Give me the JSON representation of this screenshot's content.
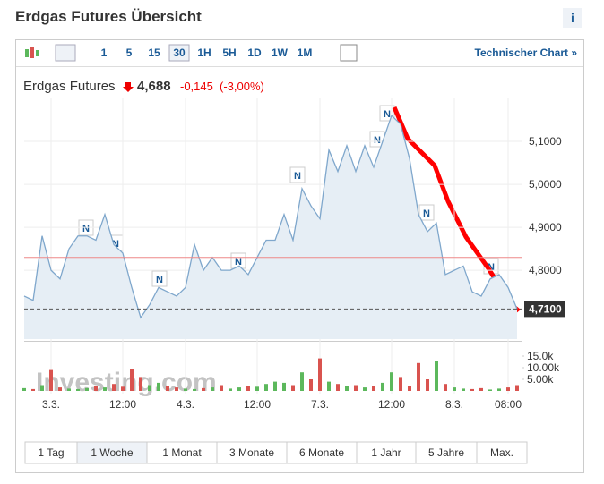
{
  "header": {
    "title": "Erdgas Futures Übersicht",
    "info": "i"
  },
  "toolbar": {
    "intervals": [
      "1",
      "5",
      "15",
      "30",
      "1H",
      "5H",
      "1D",
      "1W",
      "1M"
    ],
    "active": "30",
    "link": "Technischer Chart »"
  },
  "quote": {
    "name": "Erdgas Futures",
    "price": "4,688",
    "change": "-0,145",
    "change_pct": "(-3,00%)"
  },
  "news_label": "N",
  "watermark": "Investing.com",
  "range_buttons": [
    "1 Tag",
    "1 Woche",
    "1 Monat",
    "3 Monate",
    "6 Monate",
    "1 Jahr",
    "5 Jahre",
    "Max."
  ],
  "active_range": "1 Woche",
  "chart_data": [
    {
      "type": "line",
      "color": "#7fa7cc",
      "fill": "#e6eef5",
      "categories": [
        null,
        null,
        null,
        "3.3.",
        null,
        null,
        null,
        null,
        null,
        null,
        null,
        "12:00",
        null,
        null,
        null,
        null,
        null,
        null,
        "4.3.",
        null,
        null,
        null,
        null,
        null,
        null,
        null,
        "12:00",
        null,
        null,
        null,
        null,
        null,
        null,
        "7.3.",
        null,
        null,
        null,
        null,
        null,
        null,
        null,
        "12:00",
        null,
        null,
        null,
        null,
        null,
        null,
        "8.3.",
        null,
        null,
        null,
        null,
        null,
        "08:00",
        null
      ],
      "values": [
        4.74,
        4.73,
        4.88,
        4.8,
        4.78,
        4.85,
        4.88,
        4.88,
        4.87,
        4.93,
        4.86,
        4.84,
        4.76,
        4.69,
        4.72,
        4.76,
        4.75,
        4.74,
        4.76,
        4.86,
        4.8,
        4.83,
        4.8,
        4.8,
        4.81,
        4.79,
        4.83,
        4.87,
        4.87,
        4.93,
        4.87,
        4.99,
        4.95,
        4.92,
        5.08,
        5.03,
        5.09,
        5.03,
        5.09,
        5.04,
        5.1,
        5.16,
        5.14,
        5.06,
        4.93,
        4.89,
        4.91,
        4.79,
        4.8,
        4.81,
        4.75,
        4.74,
        4.78,
        4.79,
        4.76,
        4.71
      ],
      "ylim": [
        4.64,
        5.2
      ],
      "yticks": [
        {
          "value": 4.8,
          "label": "4,8000"
        },
        {
          "value": 4.9,
          "label": "4,9000"
        },
        {
          "value": 5.0,
          "label": "5,0000"
        },
        {
          "value": 5.1,
          "label": "5,1000"
        }
      ],
      "reference_line": {
        "value": 4.83,
        "color": "#e88"
      },
      "last_value": {
        "value": 4.71,
        "label": "4,7100"
      }
    },
    {
      "type": "bar",
      "up_color": "#5cb85c",
      "down_color": "#d9534f",
      "values": [
        1200,
        800,
        2500,
        9000,
        1500,
        1000,
        800,
        1200,
        2000,
        1500,
        3000,
        1800,
        9500,
        6000,
        2500,
        3500,
        2000,
        1500,
        1000,
        800,
        1200,
        1500,
        2500,
        1000,
        1500,
        2000,
        1800,
        3000,
        4000,
        3500,
        2500,
        8000,
        5000,
        14000,
        4000,
        3000,
        2000,
        2500,
        1500,
        2000,
        3500,
        8000,
        6000,
        2000,
        12000,
        5000,
        13000,
        3000,
        1500,
        1000,
        800,
        1200,
        600,
        1000,
        1500,
        2500
      ],
      "ylim": [
        0,
        20000
      ],
      "yticks": [
        {
          "value": 5000,
          "label": "5.00k"
        },
        {
          "value": 10000,
          "label": "10.00k"
        },
        {
          "value": 15000,
          "label": "15.0k"
        }
      ]
    }
  ]
}
